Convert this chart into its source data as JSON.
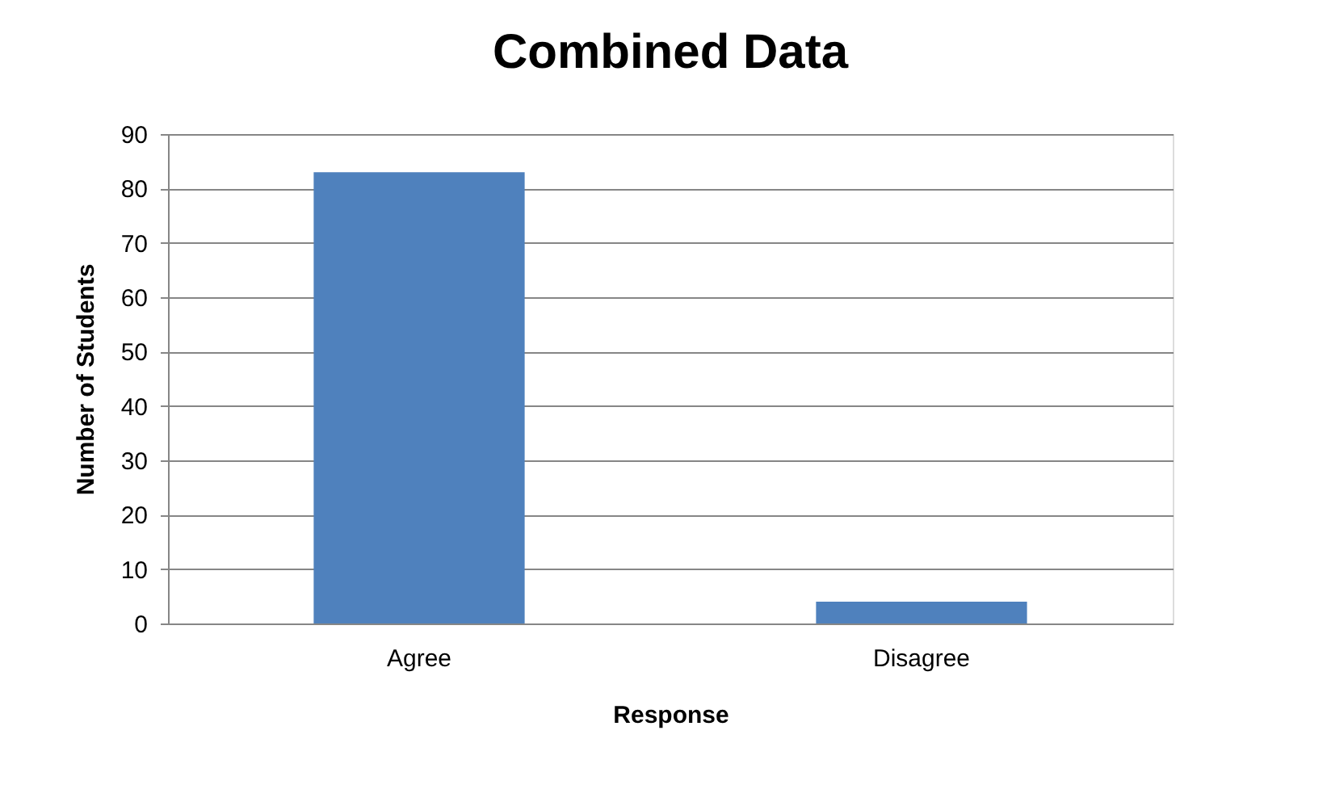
{
  "chart_data": {
    "type": "bar",
    "title": "Combined Data",
    "xlabel": "Response",
    "ylabel": "Number of Students",
    "categories": [
      "Agree",
      "Disagree"
    ],
    "values": [
      83,
      4
    ],
    "color": "#4f81bd",
    "ylim": [
      0,
      90
    ],
    "yticks": [
      0,
      10,
      20,
      30,
      40,
      50,
      60,
      70,
      80,
      90
    ],
    "grid": "y"
  }
}
